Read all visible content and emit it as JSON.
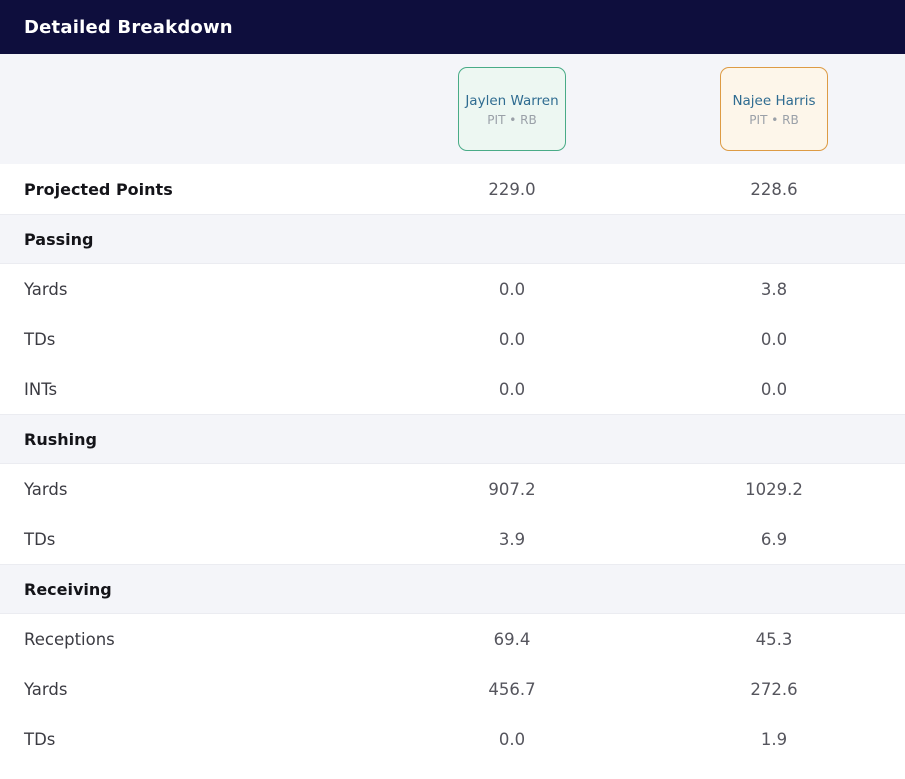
{
  "header": {
    "title": "Detailed Breakdown"
  },
  "players": [
    {
      "name": "Jaylen Warren",
      "team_pos": "PIT • RB",
      "accent_color": "#49ab87",
      "card_bg": "#edf7f2"
    },
    {
      "name": "Najee Harris",
      "team_pos": "PIT • RB",
      "accent_color": "#dd9b44",
      "card_bg": "#fdf6ea"
    }
  ],
  "table": {
    "rows": [
      {
        "type": "stat-bold",
        "label": "Projected Points",
        "values": [
          "229.0",
          "228.6"
        ]
      },
      {
        "type": "section",
        "label": "Passing"
      },
      {
        "type": "stat",
        "label": "Yards",
        "values": [
          "0.0",
          "3.8"
        ]
      },
      {
        "type": "stat",
        "label": "TDs",
        "values": [
          "0.0",
          "0.0"
        ]
      },
      {
        "type": "stat",
        "label": "INTs",
        "values": [
          "0.0",
          "0.0"
        ]
      },
      {
        "type": "section",
        "label": "Rushing"
      },
      {
        "type": "stat",
        "label": "Yards",
        "values": [
          "907.2",
          "1029.2"
        ]
      },
      {
        "type": "stat",
        "label": "TDs",
        "values": [
          "3.9",
          "6.9"
        ]
      },
      {
        "type": "section",
        "label": "Receiving"
      },
      {
        "type": "stat",
        "label": "Receptions",
        "values": [
          "69.4",
          "45.3"
        ]
      },
      {
        "type": "stat",
        "label": "Yards",
        "values": [
          "456.7",
          "272.6"
        ]
      },
      {
        "type": "stat",
        "label": "TDs",
        "values": [
          "0.0",
          "1.9"
        ]
      }
    ]
  },
  "colors": {
    "header_bg": "#0e0e3d",
    "header_text": "#ffffff",
    "band_bg": "#f4f5f9",
    "section_bg": "#f4f5f9",
    "player_name_text": "#2f6c91",
    "player_meta_text": "#9aa0a8",
    "player1_accent": "#49ab87",
    "player2_accent": "#dd9b44"
  }
}
